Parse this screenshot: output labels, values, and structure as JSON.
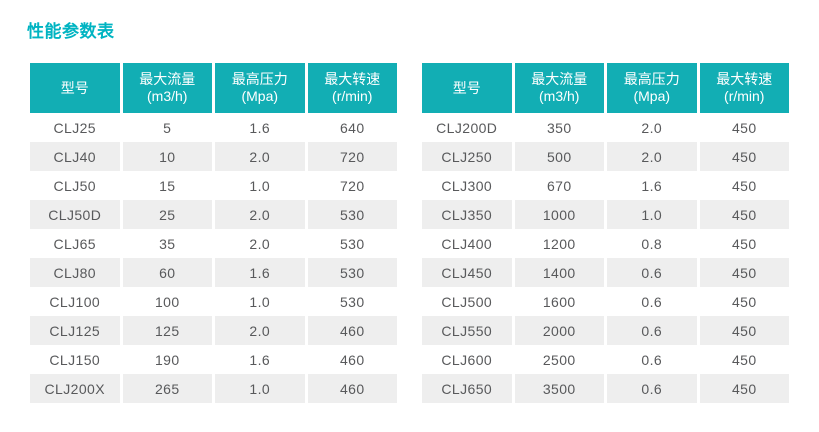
{
  "page": {
    "title": "性能参数表"
  },
  "colors": {
    "accent_title": "#00b4c2",
    "header_bg": "#12aeb4",
    "header_text": "#ffffff",
    "row_alt_bg": "#eeeeee",
    "body_text": "#58595b",
    "page_bg": "#ffffff"
  },
  "tables": [
    {
      "name": "left",
      "columns": [
        {
          "label": "型号",
          "unit": ""
        },
        {
          "label": "最大流量",
          "unit": "(m3/h)"
        },
        {
          "label": "最高压力",
          "unit": "(Mpa)"
        },
        {
          "label": "最大转速",
          "unit": "(r/min)"
        }
      ],
      "rows": [
        {
          "model": "CLJ25",
          "flow": "5",
          "pressure": "1.6",
          "speed": "640"
        },
        {
          "model": "CLJ40",
          "flow": "10",
          "pressure": "2.0",
          "speed": "720"
        },
        {
          "model": "CLJ50",
          "flow": "15",
          "pressure": "1.0",
          "speed": "720"
        },
        {
          "model": "CLJ50D",
          "flow": "25",
          "pressure": "2.0",
          "speed": "530"
        },
        {
          "model": "CLJ65",
          "flow": "35",
          "pressure": "2.0",
          "speed": "530"
        },
        {
          "model": "CLJ80",
          "flow": "60",
          "pressure": "1.6",
          "speed": "530"
        },
        {
          "model": "CLJ100",
          "flow": "100",
          "pressure": "1.0",
          "speed": "530"
        },
        {
          "model": "CLJ125",
          "flow": "125",
          "pressure": "2.0",
          "speed": "460"
        },
        {
          "model": "CLJ150",
          "flow": "190",
          "pressure": "1.6",
          "speed": "460"
        },
        {
          "model": "CLJ200X",
          "flow": "265",
          "pressure": "1.0",
          "speed": "460"
        }
      ]
    },
    {
      "name": "right",
      "columns": [
        {
          "label": "型号",
          "unit": ""
        },
        {
          "label": "最大流量",
          "unit": "(m3/h)"
        },
        {
          "label": "最高压力",
          "unit": "(Mpa)"
        },
        {
          "label": "最大转速",
          "unit": "(r/min)"
        }
      ],
      "rows": [
        {
          "model": "CLJ200D",
          "flow": "350",
          "pressure": "2.0",
          "speed": "450"
        },
        {
          "model": "CLJ250",
          "flow": "500",
          "pressure": "2.0",
          "speed": "450"
        },
        {
          "model": "CLJ300",
          "flow": "670",
          "pressure": "1.6",
          "speed": "450"
        },
        {
          "model": "CLJ350",
          "flow": "1000",
          "pressure": "1.0",
          "speed": "450"
        },
        {
          "model": "CLJ400",
          "flow": "1200",
          "pressure": "0.8",
          "speed": "450"
        },
        {
          "model": "CLJ450",
          "flow": "1400",
          "pressure": "0.6",
          "speed": "450"
        },
        {
          "model": "CLJ500",
          "flow": "1600",
          "pressure": "0.6",
          "speed": "450"
        },
        {
          "model": "CLJ550",
          "flow": "2000",
          "pressure": "0.6",
          "speed": "450"
        },
        {
          "model": "CLJ600",
          "flow": "2500",
          "pressure": "0.6",
          "speed": "450"
        },
        {
          "model": "CLJ650",
          "flow": "3500",
          "pressure": "0.6",
          "speed": "450"
        }
      ]
    }
  ]
}
